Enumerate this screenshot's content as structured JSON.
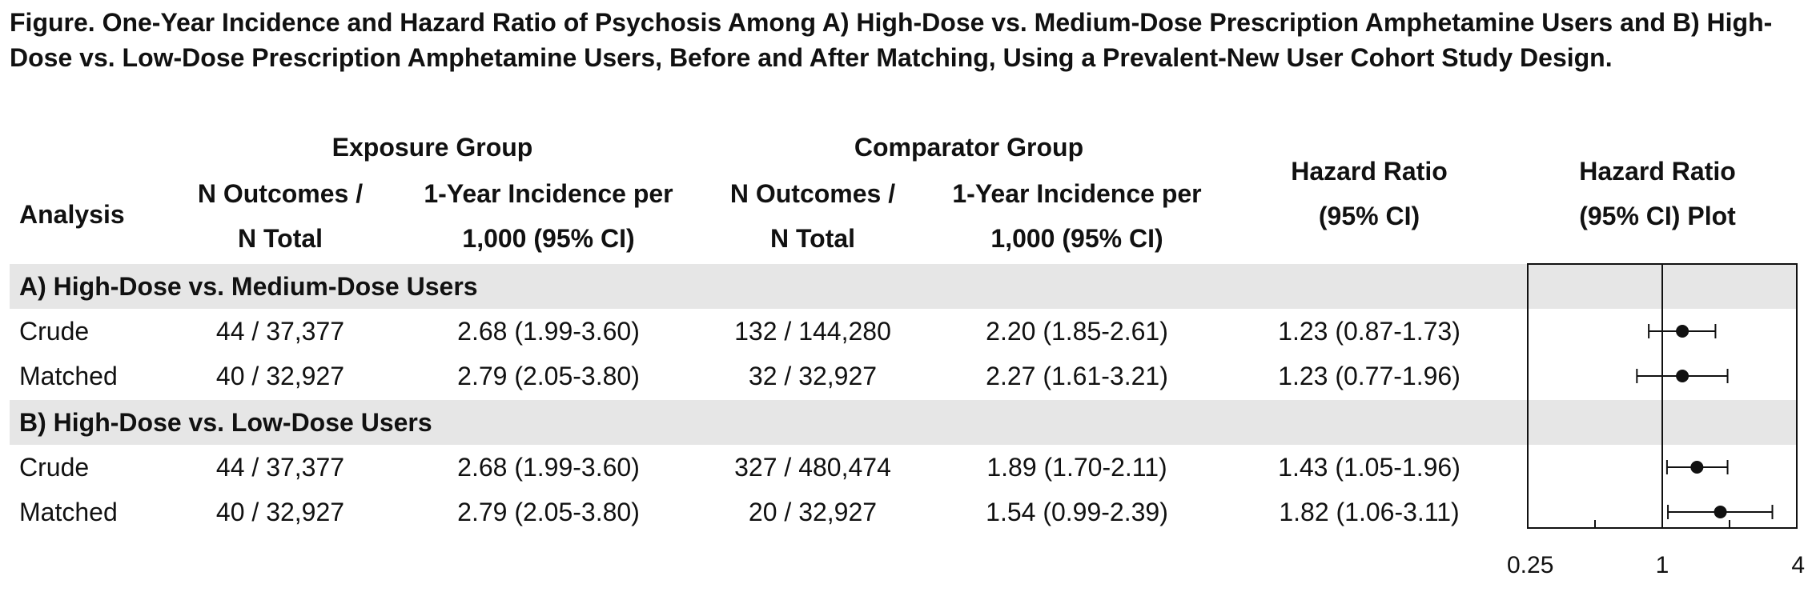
{
  "title": "Figure. One-Year Incidence and Hazard Ratio of Psychosis Among A) High-Dose vs. Medium-Dose Prescription Amphetamine Users and B) High-Dose vs. Low-Dose Prescription Amphetamine Users, Before and After Matching, Using a Prevalent-New User Cohort Study Design.",
  "headers": {
    "analysis": "Analysis",
    "exposure_group": "Exposure Group",
    "comparator_group": "Comparator Group",
    "n_outcomes_line1": "N Outcomes /",
    "n_outcomes_line2": "N Total",
    "incidence_line1": "1-Year Incidence per",
    "incidence_line2": "1,000 (95% CI)",
    "hr_line1": "Hazard Ratio",
    "hr_line2": "(95% CI)",
    "plot_line1": "Hazard Ratio",
    "plot_line2": "(95% CI) Plot"
  },
  "sections": [
    {
      "label": "A) High-Dose vs. Medium-Dose Users",
      "rows": [
        {
          "analysis": "Crude",
          "exp_n": "44 / 37,377",
          "exp_inc": "2.68 (1.99-3.60)",
          "comp_n": "132 / 144,280",
          "comp_inc": "2.20 (1.85-2.61)",
          "hr": "1.23 (0.87-1.73)"
        },
        {
          "analysis": "Matched",
          "exp_n": "40 / 32,927",
          "exp_inc": "2.79 (2.05-3.80)",
          "comp_n": "32 / 32,927",
          "comp_inc": "2.27 (1.61-3.21)",
          "hr": "1.23 (0.77-1.96)"
        }
      ]
    },
    {
      "label": "B) High-Dose vs. Low-Dose Users",
      "rows": [
        {
          "analysis": "Crude",
          "exp_n": "44 / 37,377",
          "exp_inc": "2.68 (1.99-3.60)",
          "comp_n": "327 / 480,474",
          "comp_inc": "1.89 (1.70-2.11)",
          "hr": "1.43 (1.05-1.96)"
        },
        {
          "analysis": "Matched",
          "exp_n": "40 / 32,927",
          "exp_inc": "2.79 (2.05-3.80)",
          "comp_n": "20 / 32,927",
          "comp_inc": "1.54 (0.99-2.39)",
          "hr": "1.82 (1.06-3.11)"
        }
      ]
    }
  ],
  "chart_data": {
    "type": "scatter",
    "x_scale": "log",
    "xlim": [
      0.25,
      4
    ],
    "reference_line": 1,
    "tick_values": [
      0.25,
      0.5,
      1,
      2,
      4
    ],
    "tick_labels": [
      "0.25",
      "",
      "1",
      "",
      "4"
    ],
    "series": [
      {
        "values": [
          {
            "estimate": 1.23,
            "lower": 0.87,
            "upper": 1.73
          },
          {
            "estimate": 1.23,
            "lower": 0.77,
            "upper": 1.96
          },
          {
            "estimate": 1.43,
            "lower": 1.05,
            "upper": 1.96
          },
          {
            "estimate": 1.82,
            "lower": 1.06,
            "upper": 3.11
          }
        ]
      }
    ]
  }
}
